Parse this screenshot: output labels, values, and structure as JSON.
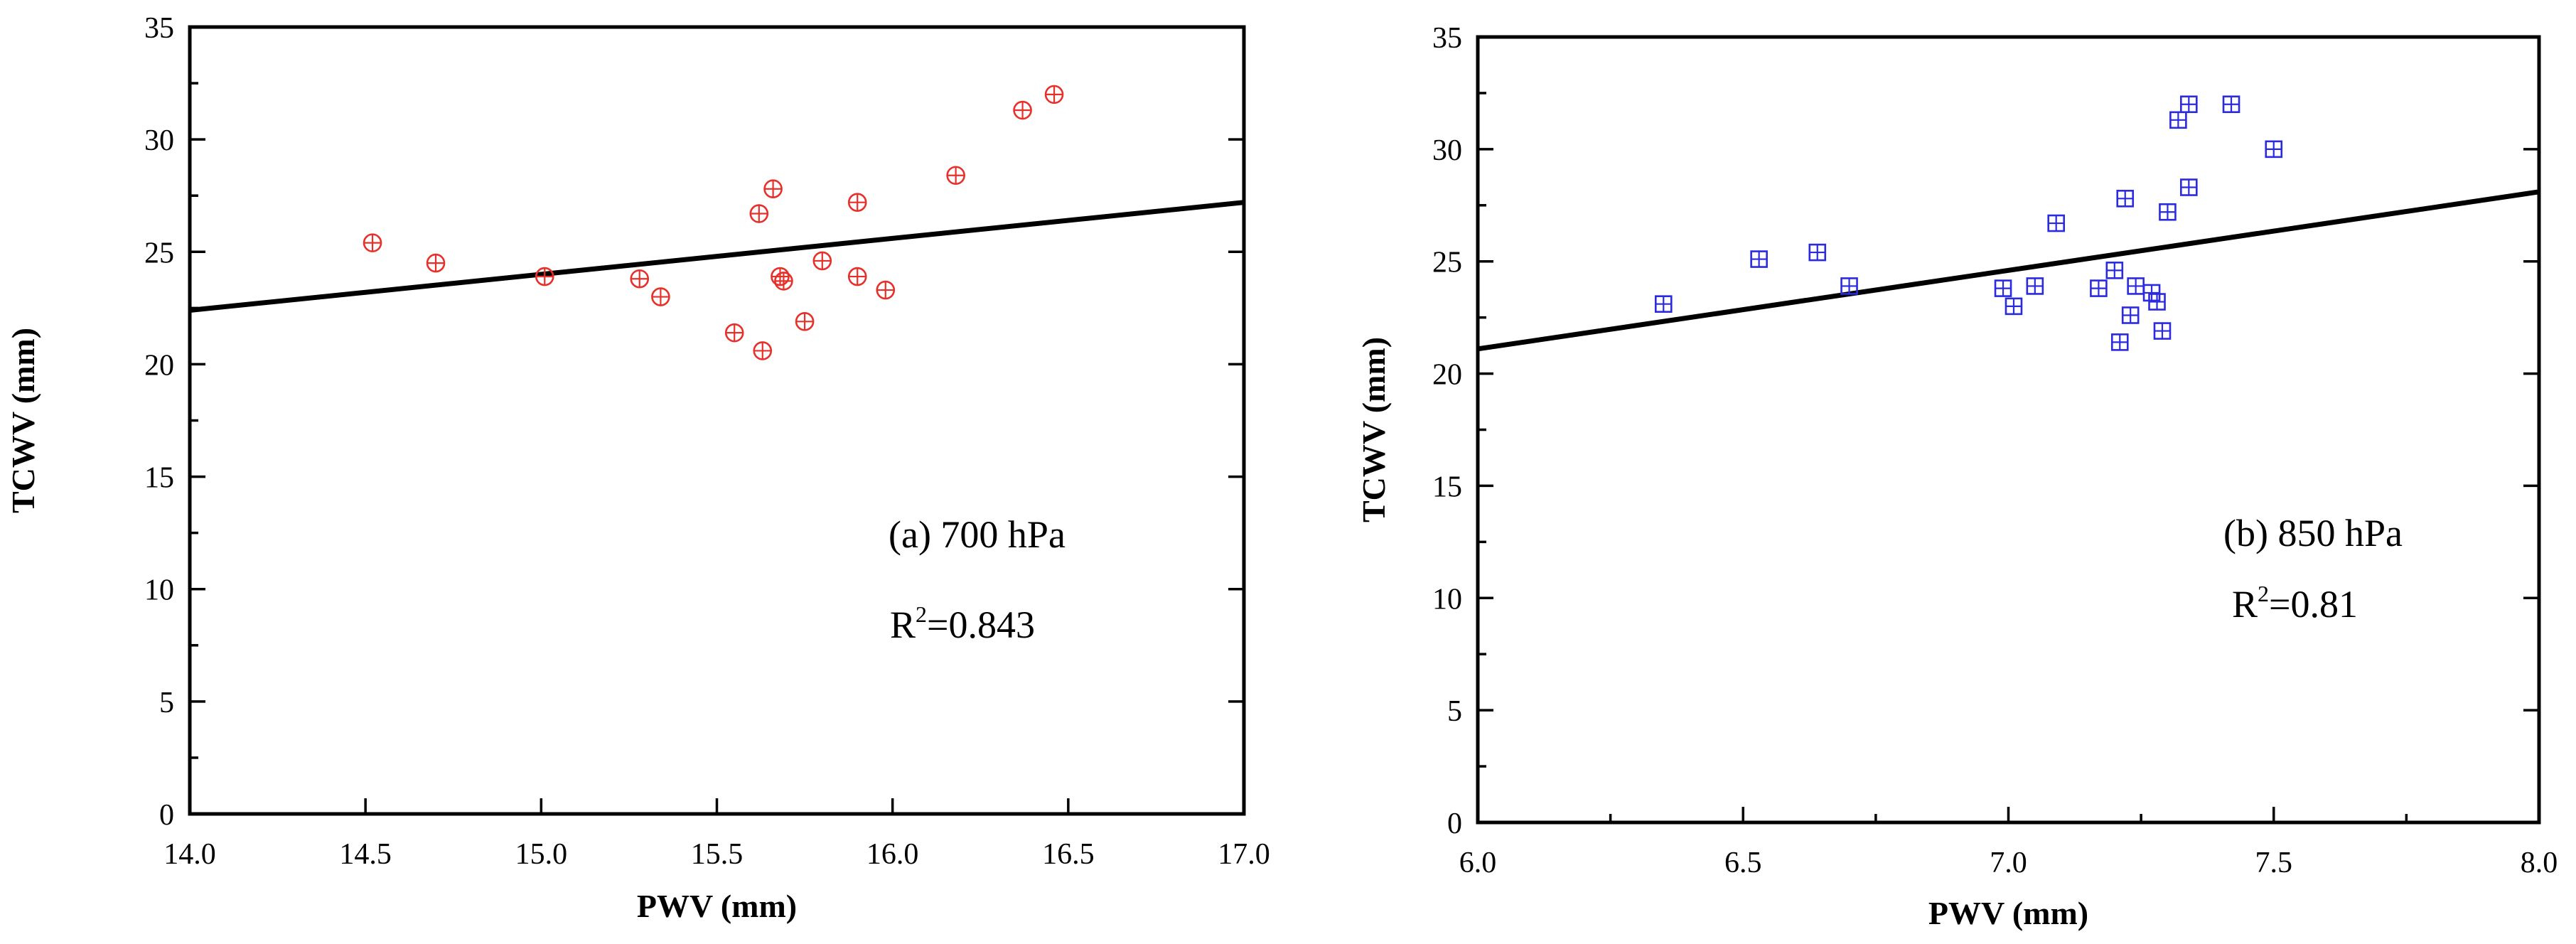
{
  "chart_data": [
    {
      "type": "scatter",
      "panel": "a",
      "marker": "circle-plus",
      "marker_color": "#e8302a",
      "annotation": "(a) 700 hPa",
      "r2_label": "R",
      "r2_sup": "2",
      "r2_value": "=0.843",
      "xlabel": "PWV (mm)",
      "ylabel": "TCWV (mm)",
      "xlim": [
        14.0,
        17.0
      ],
      "ylim": [
        0,
        35
      ],
      "xticks": [
        "14.0",
        "14.5",
        "15.0",
        "15.5",
        "16.0",
        "16.5",
        "17.0"
      ],
      "yticks": [
        "0",
        "5",
        "10",
        "15",
        "20",
        "25",
        "30",
        "35"
      ],
      "fit_line": {
        "x": [
          14.0,
          17.0
        ],
        "y": [
          22.4,
          27.2
        ]
      },
      "points": [
        {
          "x": 14.52,
          "y": 25.4
        },
        {
          "x": 14.7,
          "y": 24.5
        },
        {
          "x": 15.01,
          "y": 23.9
        },
        {
          "x": 15.28,
          "y": 23.8
        },
        {
          "x": 15.34,
          "y": 23.0
        },
        {
          "x": 15.55,
          "y": 21.4
        },
        {
          "x": 15.62,
          "y": 26.7
        },
        {
          "x": 15.63,
          "y": 20.6
        },
        {
          "x": 15.66,
          "y": 27.8
        },
        {
          "x": 15.68,
          "y": 23.9
        },
        {
          "x": 15.69,
          "y": 23.7
        },
        {
          "x": 15.75,
          "y": 21.9
        },
        {
          "x": 15.8,
          "y": 24.6
        },
        {
          "x": 15.9,
          "y": 27.2
        },
        {
          "x": 15.9,
          "y": 23.9
        },
        {
          "x": 15.98,
          "y": 23.3
        },
        {
          "x": 16.18,
          "y": 28.4
        },
        {
          "x": 16.37,
          "y": 31.3
        },
        {
          "x": 16.46,
          "y": 32.0
        }
      ]
    },
    {
      "type": "scatter",
      "panel": "b",
      "marker": "square-plus",
      "marker_color": "#2a2ae0",
      "annotation": "(b) 850 hPa",
      "r2_label": "R",
      "r2_sup": "2",
      "r2_value": "=0.81",
      "xlabel": "PWV (mm)",
      "ylabel": "TCWV (mm)",
      "xlim": [
        6.0,
        8.0
      ],
      "ylim": [
        0,
        35
      ],
      "xticks": [
        "6.0",
        "6.5",
        "7.0",
        "7.5",
        "8.0"
      ],
      "yticks": [
        "0",
        "5",
        "10",
        "15",
        "20",
        "25",
        "30",
        "35"
      ],
      "fit_line": {
        "x": [
          6.0,
          8.0
        ],
        "y": [
          21.1,
          28.1
        ]
      },
      "points": [
        {
          "x": 6.35,
          "y": 23.1
        },
        {
          "x": 6.53,
          "y": 25.1
        },
        {
          "x": 6.64,
          "y": 25.4
        },
        {
          "x": 6.7,
          "y": 23.9
        },
        {
          "x": 6.99,
          "y": 23.8
        },
        {
          "x": 7.01,
          "y": 23.0
        },
        {
          "x": 7.05,
          "y": 23.9
        },
        {
          "x": 7.09,
          "y": 26.7
        },
        {
          "x": 7.17,
          "y": 23.8
        },
        {
          "x": 7.2,
          "y": 24.6
        },
        {
          "x": 7.21,
          "y": 21.4
        },
        {
          "x": 7.22,
          "y": 27.8
        },
        {
          "x": 7.23,
          "y": 22.6
        },
        {
          "x": 7.24,
          "y": 23.9
        },
        {
          "x": 7.27,
          "y": 23.6
        },
        {
          "x": 7.28,
          "y": 23.2
        },
        {
          "x": 7.29,
          "y": 21.9
        },
        {
          "x": 7.3,
          "y": 27.2
        },
        {
          "x": 7.32,
          "y": 31.3
        },
        {
          "x": 7.34,
          "y": 28.3
        },
        {
          "x": 7.34,
          "y": 32.0
        },
        {
          "x": 7.42,
          "y": 32.0
        },
        {
          "x": 7.5,
          "y": 30.0
        }
      ]
    }
  ]
}
